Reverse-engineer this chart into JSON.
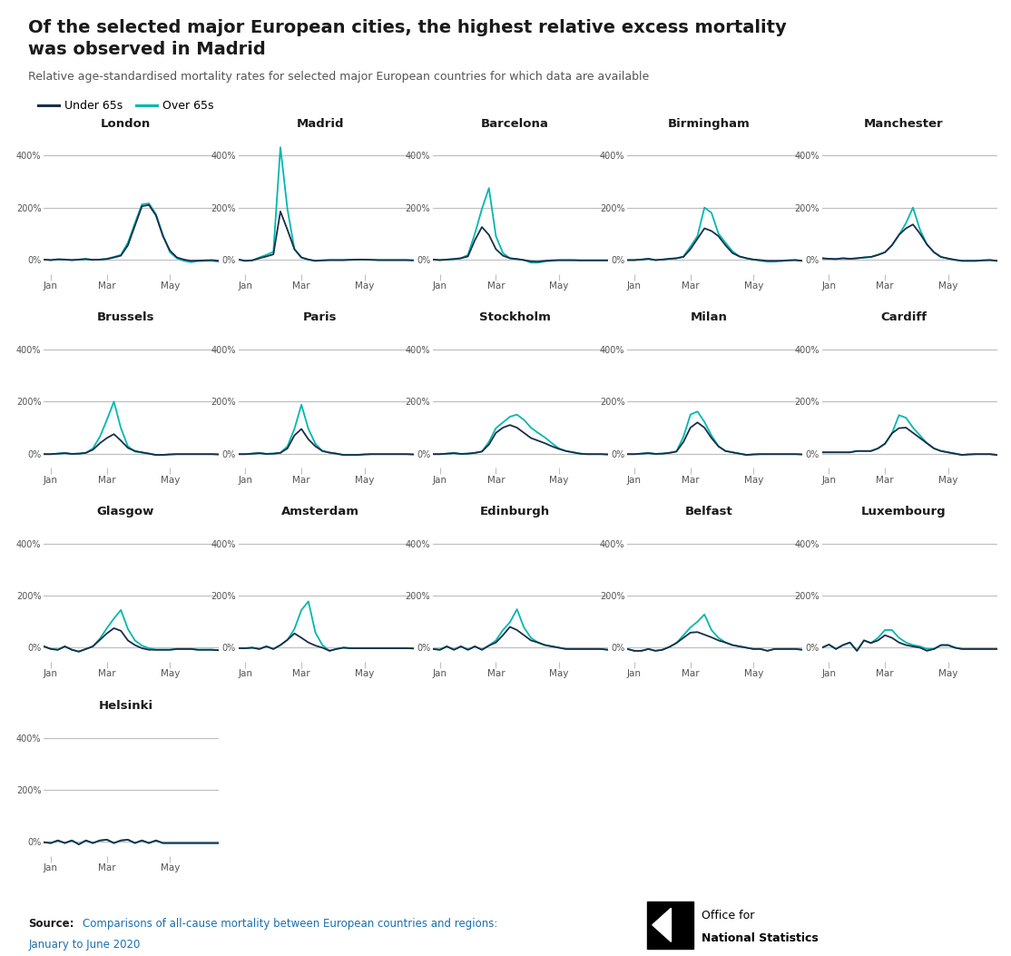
{
  "title_line1": "Of the selected major European cities, the highest relative excess mortality",
  "title_line2": "was observed in Madrid",
  "subtitle": "Relative age-standardised mortality rates for selected major European countries for which data are available",
  "legend_under65": "Under 65s",
  "legend_over65": "Over 65s",
  "color_under65": "#1a2e4a",
  "color_over65": "#00b8b0",
  "source_bold": "Source:",
  "source_text": " Comparisons of all-cause mortality between European countries and regions:",
  "source_text2": "January to June 2020",
  "background_color": "#ffffff",
  "grid_color": "#c0c0c0",
  "title_color": "#1a1a1a",
  "subtitle_color": "#555555",
  "tick_color": "#555555",
  "cities": [
    "London",
    "Madrid",
    "Barcelona",
    "Birmingham",
    "Manchester",
    "Brussels",
    "Paris",
    "Stockholm",
    "Milan",
    "Cardiff",
    "Glasgow",
    "Amsterdam",
    "Edinburgh",
    "Belfast",
    "Luxembourg",
    "Helsinki"
  ],
  "n_weeks": 26,
  "city_data": {
    "London": {
      "under65": [
        0,
        -2,
        1,
        0,
        -2,
        0,
        2,
        -1,
        0,
        2,
        8,
        15,
        55,
        130,
        205,
        210,
        170,
        90,
        35,
        8,
        0,
        -5,
        -4,
        -3,
        -2,
        -5
      ],
      "over65": [
        0,
        -2,
        1,
        0,
        -2,
        0,
        2,
        -1,
        0,
        3,
        10,
        18,
        65,
        140,
        212,
        216,
        175,
        95,
        28,
        5,
        -5,
        -10,
        -6,
        -5,
        -5,
        -8
      ]
    },
    "Madrid": {
      "under65": [
        0,
        -5,
        -3,
        5,
        12,
        20,
        185,
        115,
        40,
        8,
        0,
        -5,
        -3,
        -2,
        -2,
        -2,
        -1,
        0,
        0,
        -1,
        -2,
        -2,
        -2,
        -2,
        -2,
        -3
      ],
      "over65": [
        0,
        -5,
        -3,
        8,
        18,
        30,
        432,
        195,
        40,
        8,
        0,
        -5,
        -3,
        -2,
        -2,
        -2,
        -1,
        0,
        0,
        -1,
        -2,
        -2,
        -2,
        -2,
        -2,
        -3
      ]
    },
    "Barcelona": {
      "under65": [
        0,
        -2,
        0,
        2,
        5,
        12,
        75,
        125,
        95,
        40,
        15,
        5,
        2,
        -2,
        -7,
        -8,
        -5,
        -3,
        -2,
        -2,
        -2,
        -3,
        -3,
        -3,
        -3,
        -3
      ],
      "over65": [
        0,
        -2,
        0,
        2,
        5,
        18,
        100,
        195,
        275,
        90,
        25,
        5,
        2,
        -2,
        -12,
        -12,
        -7,
        -5,
        -3,
        -3,
        -3,
        -3,
        -3,
        -3,
        -3,
        -3
      ]
    },
    "Birmingham": {
      "under65": [
        -2,
        -2,
        0,
        3,
        -2,
        0,
        3,
        5,
        10,
        40,
        80,
        120,
        110,
        90,
        55,
        25,
        12,
        5,
        0,
        -2,
        -5,
        -5,
        -5,
        -3,
        -2,
        -5
      ],
      "over65": [
        -2,
        -2,
        0,
        3,
        -2,
        0,
        3,
        5,
        12,
        50,
        90,
        200,
        180,
        100,
        65,
        32,
        12,
        5,
        0,
        -5,
        -8,
        -8,
        -5,
        -3,
        -2,
        -5
      ]
    },
    "Manchester": {
      "under65": [
        5,
        3,
        2,
        5,
        3,
        5,
        8,
        10,
        18,
        28,
        55,
        95,
        120,
        135,
        100,
        58,
        28,
        10,
        4,
        -1,
        -5,
        -5,
        -5,
        -3,
        -2,
        -5
      ],
      "over65": [
        5,
        3,
        2,
        5,
        3,
        5,
        8,
        10,
        18,
        28,
        55,
        95,
        140,
        200,
        115,
        58,
        28,
        10,
        4,
        -1,
        -5,
        -5,
        -5,
        -3,
        -2,
        -5
      ]
    },
    "Brussels": {
      "under65": [
        -2,
        -2,
        0,
        2,
        -1,
        0,
        3,
        15,
        40,
        60,
        75,
        50,
        22,
        10,
        5,
        0,
        -5,
        -5,
        -3,
        -2,
        -2,
        -2,
        -2,
        -2,
        -2,
        -3
      ],
      "over65": [
        -2,
        -2,
        0,
        2,
        -1,
        0,
        3,
        20,
        65,
        130,
        200,
        98,
        28,
        8,
        4,
        0,
        -5,
        -5,
        -3,
        -2,
        -2,
        -2,
        -2,
        -2,
        -2,
        -3
      ]
    },
    "Paris": {
      "under65": [
        -2,
        -2,
        0,
        2,
        -1,
        0,
        3,
        20,
        70,
        95,
        55,
        28,
        10,
        4,
        0,
        -5,
        -5,
        -5,
        -3,
        -2,
        -2,
        -2,
        -2,
        -2,
        -2,
        -3
      ],
      "over65": [
        -2,
        -2,
        0,
        2,
        -1,
        0,
        3,
        28,
        95,
        188,
        95,
        38,
        10,
        4,
        0,
        -5,
        -5,
        -5,
        -3,
        -2,
        -2,
        -2,
        -2,
        -2,
        -2,
        -3
      ]
    },
    "Stockholm": {
      "under65": [
        -2,
        -2,
        0,
        2,
        -1,
        0,
        3,
        8,
        35,
        80,
        100,
        110,
        100,
        80,
        60,
        50,
        40,
        28,
        18,
        10,
        5,
        0,
        -2,
        -2,
        -2,
        -3
      ],
      "over65": [
        -2,
        -2,
        0,
        2,
        -1,
        0,
        3,
        8,
        45,
        98,
        120,
        142,
        150,
        130,
        100,
        80,
        62,
        40,
        20,
        10,
        5,
        0,
        -2,
        -2,
        -2,
        -3
      ]
    },
    "Milan": {
      "under65": [
        -2,
        -2,
        0,
        2,
        -1,
        0,
        3,
        8,
        45,
        100,
        120,
        100,
        60,
        28,
        10,
        5,
        0,
        -5,
        -3,
        -2,
        -2,
        -2,
        -2,
        -2,
        -2,
        -3
      ],
      "over65": [
        -2,
        -2,
        0,
        2,
        -1,
        0,
        3,
        8,
        65,
        150,
        162,
        122,
        70,
        28,
        10,
        5,
        0,
        -5,
        -3,
        -2,
        -2,
        -2,
        -2,
        -2,
        -2,
        -3
      ]
    },
    "Cardiff": {
      "under65": [
        5,
        5,
        5,
        5,
        5,
        10,
        10,
        10,
        20,
        38,
        78,
        98,
        100,
        80,
        60,
        40,
        20,
        10,
        5,
        0,
        -5,
        -3,
        -2,
        -2,
        -2,
        -5
      ],
      "over65": [
        5,
        5,
        5,
        5,
        5,
        10,
        10,
        10,
        20,
        38,
        78,
        148,
        138,
        100,
        70,
        40,
        20,
        10,
        5,
        0,
        -5,
        -3,
        -2,
        -2,
        -2,
        -5
      ]
    },
    "Glasgow": {
      "under65": [
        5,
        -5,
        -8,
        5,
        -8,
        -15,
        -5,
        5,
        30,
        55,
        75,
        65,
        28,
        10,
        -2,
        -8,
        -8,
        -8,
        -8,
        -5,
        -5,
        -5,
        -8,
        -8,
        -8,
        -10
      ],
      "over65": [
        5,
        -5,
        -8,
        5,
        -8,
        -15,
        -5,
        5,
        35,
        75,
        112,
        145,
        72,
        28,
        8,
        -2,
        -8,
        -8,
        -8,
        -5,
        -5,
        -5,
        -8,
        -8,
        -8,
        -10
      ]
    },
    "Amsterdam": {
      "under65": [
        -2,
        -2,
        0,
        -5,
        5,
        -5,
        10,
        30,
        55,
        38,
        20,
        8,
        0,
        -12,
        -5,
        0,
        -2,
        -2,
        -2,
        -2,
        -2,
        -2,
        -2,
        -2,
        -2,
        -3
      ],
      "over65": [
        -2,
        -2,
        0,
        -5,
        5,
        -5,
        10,
        30,
        72,
        145,
        178,
        58,
        10,
        -12,
        -5,
        0,
        -2,
        -2,
        -2,
        -2,
        -2,
        -2,
        -2,
        -2,
        -2,
        -3
      ]
    },
    "Edinburgh": {
      "under65": [
        -5,
        -8,
        5,
        -8,
        5,
        -8,
        5,
        -8,
        8,
        20,
        48,
        80,
        68,
        48,
        28,
        20,
        10,
        5,
        0,
        -5,
        -5,
        -5,
        -5,
        -5,
        -5,
        -8
      ],
      "over65": [
        -5,
        -8,
        5,
        -8,
        5,
        -8,
        5,
        -8,
        8,
        28,
        68,
        98,
        148,
        78,
        38,
        20,
        10,
        5,
        0,
        -5,
        -5,
        -5,
        -5,
        -5,
        -5,
        -8
      ]
    },
    "Belfast": {
      "under65": [
        -5,
        -12,
        -12,
        -5,
        -12,
        -8,
        3,
        18,
        38,
        58,
        60,
        50,
        40,
        28,
        20,
        10,
        5,
        0,
        -5,
        -5,
        -12,
        -5,
        -5,
        -5,
        -5,
        -8
      ],
      "over65": [
        -5,
        -12,
        -12,
        -5,
        -12,
        -8,
        3,
        18,
        48,
        78,
        100,
        128,
        68,
        38,
        20,
        10,
        5,
        0,
        -5,
        -5,
        -12,
        -5,
        -5,
        -5,
        -5,
        -8
      ]
    },
    "Luxembourg": {
      "under65": [
        0,
        12,
        -5,
        10,
        20,
        -12,
        28,
        18,
        28,
        48,
        38,
        20,
        10,
        5,
        0,
        -12,
        -5,
        10,
        10,
        0,
        -5,
        -5,
        -5,
        -5,
        -5,
        -5
      ],
      "over65": [
        0,
        12,
        -5,
        10,
        20,
        -12,
        28,
        18,
        38,
        68,
        68,
        38,
        20,
        10,
        5,
        -5,
        -5,
        10,
        10,
        0,
        -5,
        -5,
        -5,
        -5,
        -5,
        -5
      ]
    },
    "Helsinki": {
      "under65": [
        -2,
        -5,
        5,
        -5,
        5,
        -10,
        5,
        -5,
        5,
        8,
        -5,
        5,
        8,
        -5,
        5,
        -5,
        5,
        -5,
        -5,
        -5,
        -5,
        -5,
        -5,
        -5,
        -5,
        -5
      ],
      "over65": [
        -2,
        -5,
        5,
        -5,
        5,
        -10,
        5,
        -5,
        5,
        8,
        -5,
        5,
        8,
        -5,
        5,
        -5,
        5,
        -5,
        -5,
        -5,
        -5,
        -5,
        -5,
        -5,
        -5,
        -5
      ]
    }
  }
}
